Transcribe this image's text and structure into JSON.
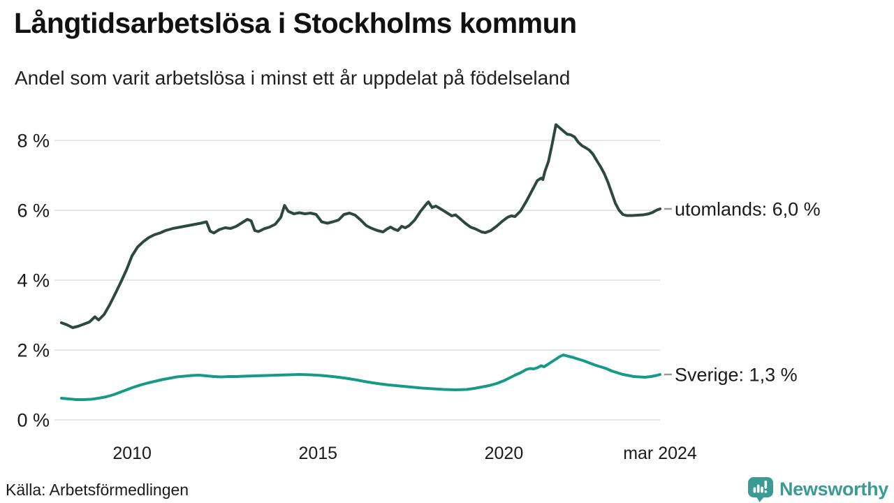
{
  "header": {
    "title": "Långtidsarbetslösa i Stockholms kommun",
    "subtitle": "Andel som varit arbetslösa i minst ett år uppdelat på födelseland"
  },
  "footer": {
    "source": "Källa: Arbetsförmedlingen",
    "brand": "Newsworthy"
  },
  "colors": {
    "text": "#1a1a1a",
    "grid": "#e7e7e7",
    "label_dash": "#999999",
    "series_utomlands": "#2d4840",
    "series_sverige": "#169a88",
    "brand_teal": "#3b9a94"
  },
  "chart_data": {
    "type": "line",
    "title": "Långtidsarbetslösa i Stockholms kommun",
    "subtitle": "Andel som varit arbetslösa i minst ett år uppdelat på födelseland",
    "grid": true,
    "legend_position": "right-end-labels",
    "x_axis": {
      "min": 2008.1,
      "max": 2024.2,
      "ticks": [
        {
          "x": 2010.0,
          "label": "2010"
        },
        {
          "x": 2015.0,
          "label": "2015"
        },
        {
          "x": 2020.0,
          "label": "2020"
        },
        {
          "x": 2024.2,
          "label": "mar 2024"
        }
      ]
    },
    "y_axis": {
      "min": 0,
      "max": 8.6,
      "unit": "%",
      "ticks": [
        0,
        2,
        4,
        6,
        8
      ],
      "labels": [
        "0 %",
        "2 %",
        "4 %",
        "6 %",
        "8 %"
      ]
    },
    "series": [
      {
        "name": "utomlands",
        "end_label": "utomlands: 6,0 %",
        "end_value_text": "6,0 %",
        "color": "#2d4840",
        "stroke_width": 4,
        "points": [
          [
            2008.1,
            2.78
          ],
          [
            2008.25,
            2.72
          ],
          [
            2008.4,
            2.64
          ],
          [
            2008.55,
            2.68
          ],
          [
            2008.7,
            2.74
          ],
          [
            2008.85,
            2.8
          ],
          [
            2009.0,
            2.95
          ],
          [
            2009.1,
            2.86
          ],
          [
            2009.25,
            3.02
          ],
          [
            2009.4,
            3.3
          ],
          [
            2009.55,
            3.62
          ],
          [
            2009.7,
            3.95
          ],
          [
            2009.85,
            4.3
          ],
          [
            2010.0,
            4.7
          ],
          [
            2010.15,
            4.95
          ],
          [
            2010.3,
            5.1
          ],
          [
            2010.45,
            5.22
          ],
          [
            2010.6,
            5.3
          ],
          [
            2010.75,
            5.35
          ],
          [
            2010.9,
            5.42
          ],
          [
            2011.1,
            5.48
          ],
          [
            2011.3,
            5.52
          ],
          [
            2011.5,
            5.56
          ],
          [
            2011.7,
            5.6
          ],
          [
            2011.85,
            5.63
          ],
          [
            2012.0,
            5.67
          ],
          [
            2012.1,
            5.4
          ],
          [
            2012.2,
            5.35
          ],
          [
            2012.35,
            5.45
          ],
          [
            2012.5,
            5.5
          ],
          [
            2012.65,
            5.48
          ],
          [
            2012.8,
            5.54
          ],
          [
            2012.95,
            5.64
          ],
          [
            2013.1,
            5.74
          ],
          [
            2013.2,
            5.7
          ],
          [
            2013.3,
            5.42
          ],
          [
            2013.4,
            5.39
          ],
          [
            2013.55,
            5.47
          ],
          [
            2013.7,
            5.52
          ],
          [
            2013.85,
            5.6
          ],
          [
            2014.0,
            5.8
          ],
          [
            2014.1,
            6.14
          ],
          [
            2014.2,
            5.97
          ],
          [
            2014.35,
            5.9
          ],
          [
            2014.5,
            5.93
          ],
          [
            2014.65,
            5.9
          ],
          [
            2014.8,
            5.92
          ],
          [
            2014.95,
            5.88
          ],
          [
            2015.1,
            5.67
          ],
          [
            2015.25,
            5.63
          ],
          [
            2015.4,
            5.67
          ],
          [
            2015.55,
            5.72
          ],
          [
            2015.7,
            5.88
          ],
          [
            2015.85,
            5.92
          ],
          [
            2016.0,
            5.86
          ],
          [
            2016.15,
            5.72
          ],
          [
            2016.3,
            5.56
          ],
          [
            2016.45,
            5.48
          ],
          [
            2016.6,
            5.42
          ],
          [
            2016.75,
            5.38
          ],
          [
            2016.85,
            5.46
          ],
          [
            2016.95,
            5.52
          ],
          [
            2017.05,
            5.46
          ],
          [
            2017.15,
            5.42
          ],
          [
            2017.25,
            5.54
          ],
          [
            2017.35,
            5.5
          ],
          [
            2017.45,
            5.56
          ],
          [
            2017.6,
            5.72
          ],
          [
            2017.75,
            5.96
          ],
          [
            2017.9,
            6.16
          ],
          [
            2017.97,
            6.24
          ],
          [
            2018.07,
            6.08
          ],
          [
            2018.17,
            6.12
          ],
          [
            2018.3,
            6.04
          ],
          [
            2018.45,
            5.94
          ],
          [
            2018.6,
            5.84
          ],
          [
            2018.7,
            5.87
          ],
          [
            2018.8,
            5.78
          ],
          [
            2018.95,
            5.64
          ],
          [
            2019.1,
            5.52
          ],
          [
            2019.25,
            5.46
          ],
          [
            2019.4,
            5.38
          ],
          [
            2019.5,
            5.36
          ],
          [
            2019.65,
            5.42
          ],
          [
            2019.8,
            5.54
          ],
          [
            2019.95,
            5.68
          ],
          [
            2020.1,
            5.8
          ],
          [
            2020.2,
            5.84
          ],
          [
            2020.3,
            5.82
          ],
          [
            2020.45,
            5.98
          ],
          [
            2020.6,
            6.25
          ],
          [
            2020.75,
            6.55
          ],
          [
            2020.9,
            6.85
          ],
          [
            2021.0,
            6.92
          ],
          [
            2021.05,
            6.88
          ],
          [
            2021.1,
            7.1
          ],
          [
            2021.2,
            7.4
          ],
          [
            2021.3,
            7.9
          ],
          [
            2021.4,
            8.45
          ],
          [
            2021.5,
            8.36
          ],
          [
            2021.6,
            8.27
          ],
          [
            2021.7,
            8.18
          ],
          [
            2021.8,
            8.16
          ],
          [
            2021.9,
            8.1
          ],
          [
            2022.0,
            7.95
          ],
          [
            2022.1,
            7.85
          ],
          [
            2022.2,
            7.79
          ],
          [
            2022.3,
            7.72
          ],
          [
            2022.4,
            7.6
          ],
          [
            2022.5,
            7.42
          ],
          [
            2022.6,
            7.25
          ],
          [
            2022.7,
            7.05
          ],
          [
            2022.8,
            6.8
          ],
          [
            2022.9,
            6.5
          ],
          [
            2023.0,
            6.2
          ],
          [
            2023.1,
            6.0
          ],
          [
            2023.2,
            5.88
          ],
          [
            2023.3,
            5.85
          ],
          [
            2023.45,
            5.85
          ],
          [
            2023.6,
            5.86
          ],
          [
            2023.75,
            5.87
          ],
          [
            2023.9,
            5.9
          ],
          [
            2024.0,
            5.94
          ],
          [
            2024.1,
            6.0
          ],
          [
            2024.2,
            6.04
          ]
        ]
      },
      {
        "name": "Sverige",
        "end_label": "Sverige: 1,3 %",
        "end_value_text": "1,3 %",
        "color": "#169a88",
        "stroke_width": 4,
        "points": [
          [
            2008.1,
            0.62
          ],
          [
            2008.3,
            0.6
          ],
          [
            2008.5,
            0.58
          ],
          [
            2008.7,
            0.58
          ],
          [
            2008.9,
            0.59
          ],
          [
            2009.1,
            0.62
          ],
          [
            2009.3,
            0.66
          ],
          [
            2009.5,
            0.72
          ],
          [
            2009.7,
            0.8
          ],
          [
            2009.85,
            0.86
          ],
          [
            2010.0,
            0.92
          ],
          [
            2010.2,
            0.99
          ],
          [
            2010.4,
            1.05
          ],
          [
            2010.6,
            1.1
          ],
          [
            2010.8,
            1.15
          ],
          [
            2011.0,
            1.19
          ],
          [
            2011.2,
            1.23
          ],
          [
            2011.4,
            1.25
          ],
          [
            2011.6,
            1.27
          ],
          [
            2011.8,
            1.28
          ],
          [
            2012.0,
            1.26
          ],
          [
            2012.2,
            1.24
          ],
          [
            2012.4,
            1.23
          ],
          [
            2012.6,
            1.24
          ],
          [
            2012.8,
            1.24
          ],
          [
            2013.0,
            1.25
          ],
          [
            2013.3,
            1.26
          ],
          [
            2013.6,
            1.27
          ],
          [
            2013.9,
            1.28
          ],
          [
            2014.2,
            1.29
          ],
          [
            2014.5,
            1.3
          ],
          [
            2014.8,
            1.29
          ],
          [
            2015.1,
            1.27
          ],
          [
            2015.4,
            1.24
          ],
          [
            2015.7,
            1.2
          ],
          [
            2016.0,
            1.15
          ],
          [
            2016.3,
            1.09
          ],
          [
            2016.6,
            1.04
          ],
          [
            2016.9,
            1.0
          ],
          [
            2017.2,
            0.97
          ],
          [
            2017.5,
            0.94
          ],
          [
            2017.8,
            0.91
          ],
          [
            2018.1,
            0.89
          ],
          [
            2018.4,
            0.87
          ],
          [
            2018.7,
            0.86
          ],
          [
            2019.0,
            0.87
          ],
          [
            2019.2,
            0.9
          ],
          [
            2019.4,
            0.94
          ],
          [
            2019.6,
            0.98
          ],
          [
            2019.8,
            1.04
          ],
          [
            2020.0,
            1.12
          ],
          [
            2020.15,
            1.2
          ],
          [
            2020.3,
            1.28
          ],
          [
            2020.45,
            1.35
          ],
          [
            2020.6,
            1.44
          ],
          [
            2020.7,
            1.47
          ],
          [
            2020.8,
            1.46
          ],
          [
            2020.9,
            1.49
          ],
          [
            2021.0,
            1.55
          ],
          [
            2021.08,
            1.52
          ],
          [
            2021.2,
            1.6
          ],
          [
            2021.3,
            1.67
          ],
          [
            2021.4,
            1.74
          ],
          [
            2021.5,
            1.81
          ],
          [
            2021.6,
            1.86
          ],
          [
            2021.7,
            1.83
          ],
          [
            2021.85,
            1.79
          ],
          [
            2022.0,
            1.74
          ],
          [
            2022.15,
            1.69
          ],
          [
            2022.3,
            1.63
          ],
          [
            2022.45,
            1.57
          ],
          [
            2022.6,
            1.52
          ],
          [
            2022.75,
            1.47
          ],
          [
            2022.9,
            1.4
          ],
          [
            2023.05,
            1.35
          ],
          [
            2023.2,
            1.3
          ],
          [
            2023.35,
            1.27
          ],
          [
            2023.5,
            1.24
          ],
          [
            2023.65,
            1.23
          ],
          [
            2023.8,
            1.22
          ],
          [
            2023.95,
            1.24
          ],
          [
            2024.1,
            1.27
          ],
          [
            2024.2,
            1.3
          ]
        ]
      }
    ]
  }
}
